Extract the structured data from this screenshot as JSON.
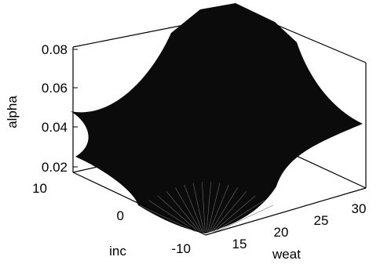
{
  "chart_data": {
    "type": "surface",
    "title": "",
    "xlabel": "weat",
    "ylabel": "inc",
    "zlabel": "alpha",
    "x_ticks": [
      "15",
      "20",
      "25",
      "30"
    ],
    "y_ticks": [
      "-10",
      "0",
      "10"
    ],
    "z_ticks": [
      "0.02",
      "0.04",
      "0.06",
      "0.08"
    ],
    "xlim": [
      10,
      30
    ],
    "ylim": [
      -10,
      10
    ],
    "zlim": [
      0.02,
      0.08
    ],
    "grid": false,
    "surface_points": [
      {
        "weat": 20,
        "inc": 0,
        "alpha": 0.08
      },
      {
        "weat": 10,
        "inc": -10,
        "alpha": 0.05
      },
      {
        "weat": 30,
        "inc": 10,
        "alpha": 0.05
      },
      {
        "weat": 10,
        "inc": 10,
        "alpha": 0.045
      },
      {
        "weat": 30,
        "inc": -10,
        "alpha": 0.045
      }
    ]
  }
}
